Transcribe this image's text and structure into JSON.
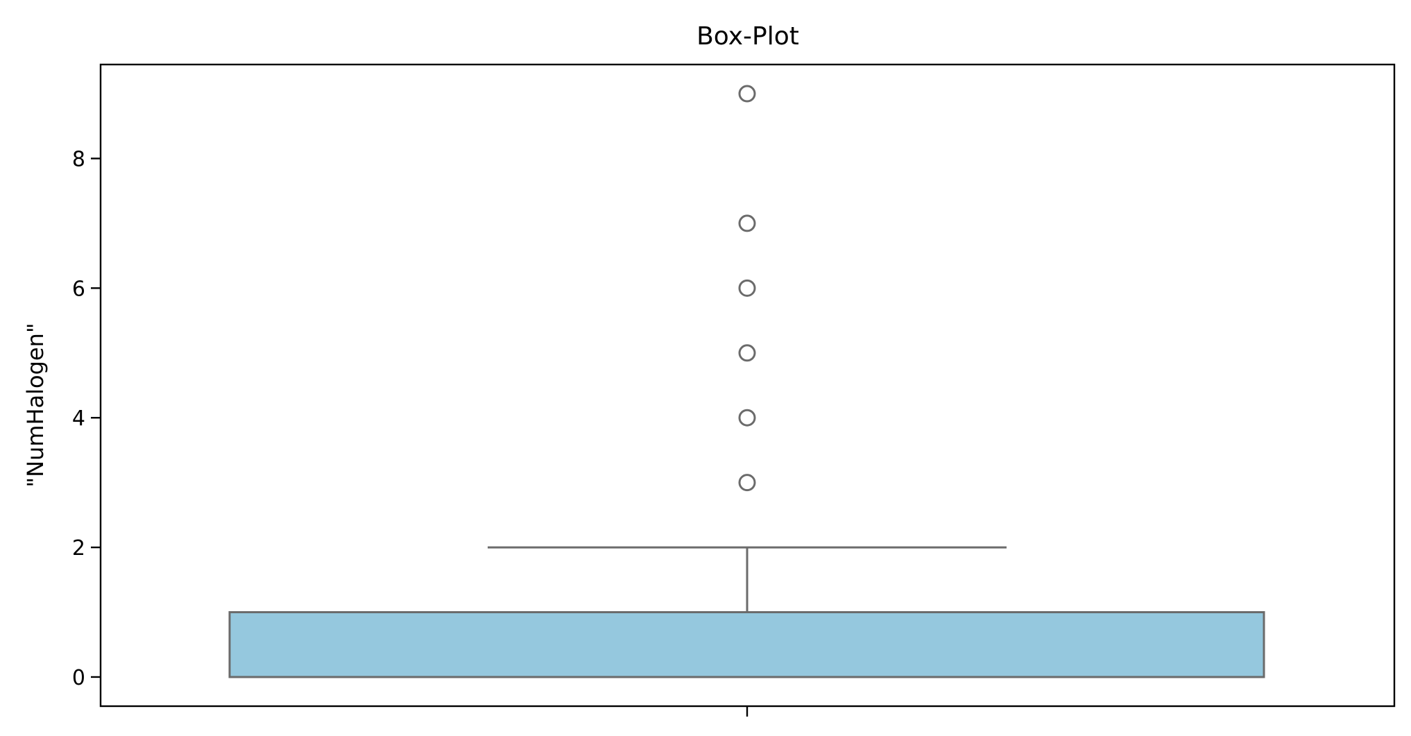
{
  "chart_data": {
    "type": "box",
    "title": "Box-Plot",
    "xlabel": "",
    "ylabel": "\"NumHalogen\"",
    "ylim": [
      -0.45,
      9.45
    ],
    "yticks": [
      0,
      2,
      4,
      6,
      8
    ],
    "grid": false,
    "box": {
      "min": 0,
      "q1": 0,
      "median": 0,
      "q3": 1,
      "whisker_low": 0,
      "whisker_high": 2,
      "outliers": [
        3,
        4,
        5,
        6,
        7,
        9
      ]
    },
    "colors": {
      "box_fill": "#95c8de",
      "box_edge": "#6b6b6b",
      "outlier_edge": "#6b6b6b",
      "axes": "#000000"
    }
  }
}
